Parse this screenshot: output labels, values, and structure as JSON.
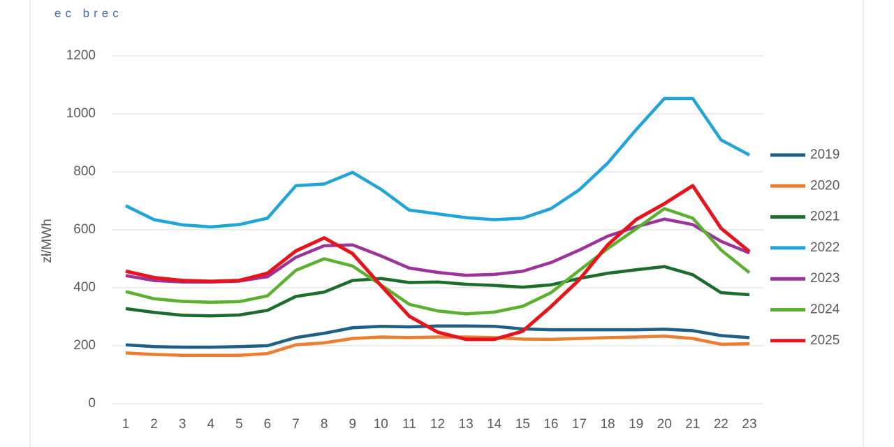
{
  "logo": "ec brec",
  "chart_data": {
    "type": "line",
    "y_label": "zł/MWh",
    "categories": [
      "1",
      "2",
      "3",
      "4",
      "5",
      "6",
      "7",
      "8",
      "9",
      "10",
      "11",
      "12",
      "13",
      "14",
      "15",
      "16",
      "17",
      "18",
      "19",
      "20",
      "21",
      "22",
      "23"
    ],
    "ylim": [
      0,
      1200
    ],
    "yticks": [
      0,
      200,
      400,
      600,
      800,
      1000,
      1200
    ],
    "grid": true,
    "legend": "right",
    "series": [
      {
        "name": "2019",
        "color": "#1f5f86",
        "values": [
          203,
          197,
          195,
          195,
          197,
          200,
          228,
          243,
          262,
          267,
          265,
          268,
          268,
          267,
          258,
          255,
          255,
          255,
          255,
          257,
          252,
          235,
          228
        ]
      },
      {
        "name": "2020",
        "color": "#ed7d31",
        "values": [
          175,
          170,
          167,
          167,
          167,
          173,
          203,
          210,
          225,
          230,
          228,
          230,
          230,
          228,
          223,
          222,
          225,
          228,
          230,
          233,
          225,
          205,
          207
        ]
      },
      {
        "name": "2021",
        "color": "#1e6b2e",
        "values": [
          328,
          315,
          305,
          303,
          306,
          322,
          370,
          385,
          425,
          432,
          418,
          420,
          412,
          408,
          402,
          410,
          432,
          450,
          462,
          473,
          445,
          383,
          376
        ]
      },
      {
        "name": "2022",
        "color": "#1fa5d8",
        "values": [
          683,
          635,
          617,
          610,
          618,
          640,
          752,
          758,
          798,
          740,
          668,
          655,
          642,
          635,
          640,
          673,
          738,
          830,
          945,
          1053,
          1053,
          910,
          858
        ]
      },
      {
        "name": "2023",
        "color": "#9b339b",
        "values": [
          442,
          425,
          420,
          420,
          423,
          438,
          505,
          545,
          548,
          510,
          468,
          453,
          443,
          446,
          457,
          487,
          530,
          578,
          610,
          637,
          618,
          560,
          520
        ]
      },
      {
        "name": "2024",
        "color": "#5cb030",
        "values": [
          387,
          362,
          353,
          350,
          352,
          372,
          460,
          500,
          475,
          410,
          343,
          320,
          310,
          316,
          336,
          383,
          460,
          535,
          603,
          673,
          640,
          530,
          452
        ]
      },
      {
        "name": "2025",
        "color": "#e8141b",
        "values": [
          457,
          435,
          425,
          422,
          425,
          450,
          527,
          572,
          518,
          408,
          302,
          247,
          222,
          222,
          250,
          335,
          428,
          548,
          635,
          690,
          752,
          605,
          525
        ]
      }
    ]
  }
}
